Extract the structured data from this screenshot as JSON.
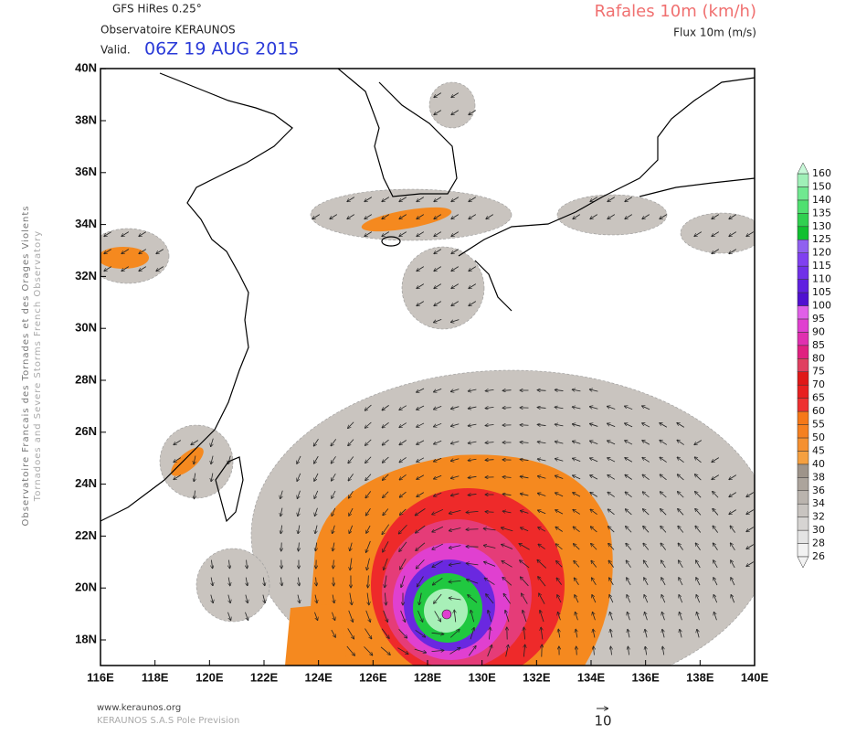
{
  "header": {
    "model": "GFS HiRes 0.25°",
    "source": "Observatoire KERAUNOS",
    "valid_label": "Valid.",
    "valid_time": "06Z 19 AUG 2015",
    "field_title": "Rafales 10m (km/h)",
    "vector_title": "Flux 10m (m/s)"
  },
  "axes": {
    "lat_labels": [
      "18N",
      "20N",
      "22N",
      "24N",
      "26N",
      "28N",
      "30N",
      "32N",
      "34N",
      "36N",
      "38N",
      "40N"
    ],
    "lon_labels": [
      "116E",
      "118E",
      "120E",
      "122E",
      "124E",
      "126E",
      "128E",
      "130E",
      "132E",
      "134E",
      "136E",
      "138E",
      "140E"
    ]
  },
  "colorbar": {
    "labels": [
      26,
      28,
      30,
      32,
      34,
      36,
      38,
      40,
      45,
      50,
      55,
      60,
      65,
      70,
      75,
      80,
      85,
      90,
      95,
      100,
      105,
      110,
      115,
      120,
      125,
      130,
      135,
      140,
      150,
      160
    ],
    "colors": [
      "#f2f2f2",
      "#e4e4e4",
      "#d6d4d2",
      "#c8c4c0",
      "#bab4ae",
      "#aca49c",
      "#9e948a",
      "#f5a040",
      "#f59030",
      "#f58020",
      "#f57818",
      "#ee3030",
      "#e82020",
      "#e01818",
      "#e04060",
      "#e02080",
      "#e030b0",
      "#e040d0",
      "#e060e8",
      "#5010d0",
      "#6020e0",
      "#7030e8",
      "#8040f0",
      "#9060f0",
      "#10c030",
      "#30d050",
      "#50e070",
      "#70e890",
      "#a0f0b8",
      "#c8f8d8"
    ]
  },
  "side_text": {
    "line1": "Observatoire Francais des Tornades et des Orages Violents",
    "line2": "Tornadoes and Severe Storms French Observatory"
  },
  "footer": {
    "url": "www.keraunos.org",
    "company": "KERAUNOS S.A.S Pole Prevision",
    "vector_scale": "10"
  }
}
